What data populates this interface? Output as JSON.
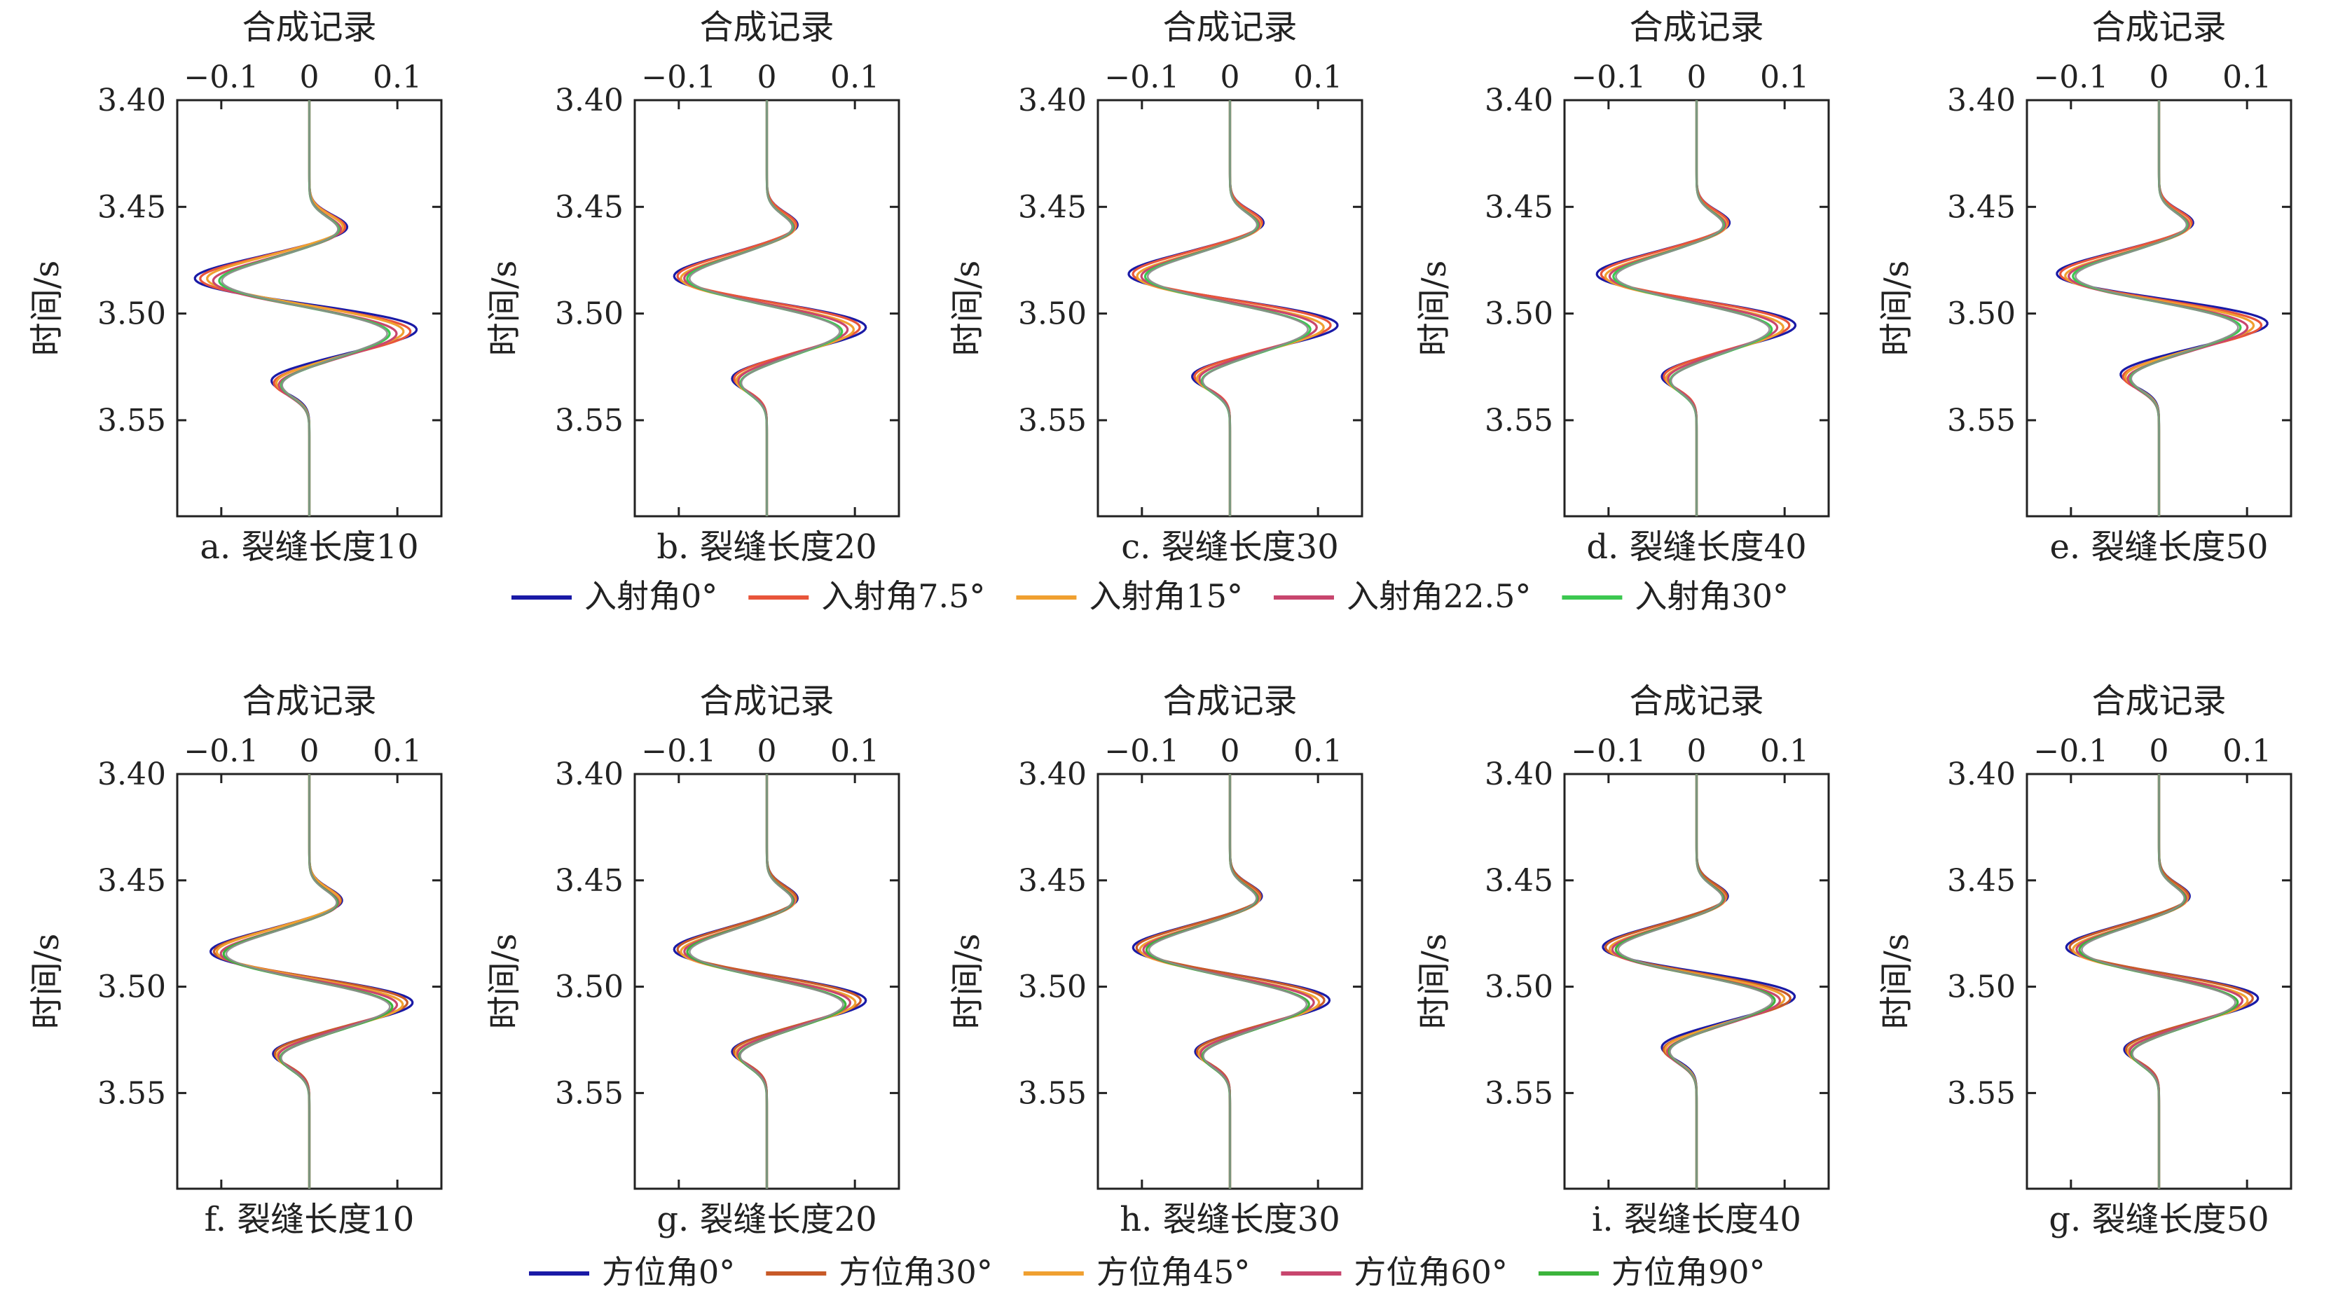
{
  "chart_data": {
    "type": "line",
    "x_axis_label": "合成记录",
    "y_axis_label": "时间/s",
    "x_ticks": [
      -0.1,
      0,
      0.1
    ],
    "x_tick_labels": [
      "−0.1",
      "0",
      "0.1"
    ],
    "xlim": [
      -0.15,
      0.15
    ],
    "y_ticks": [
      3.4,
      3.45,
      3.5,
      3.55
    ],
    "y_tick_labels": [
      "3.40",
      "3.45",
      "3.50",
      "3.55"
    ],
    "ylim": [
      3.4,
      3.595
    ],
    "y_inverted": true,
    "x_axis_position": "top",
    "grid": false,
    "rows": [
      {
        "legend": {
          "placement": "below",
          "entries": [
            {
              "label": "入射角0°",
              "color": "#1a1aa6"
            },
            {
              "label": "入射角7.5°",
              "color": "#e8553a"
            },
            {
              "label": "入射角15°",
              "color": "#f0a030"
            },
            {
              "label": "入射角22.5°",
              "color": "#c8466e"
            },
            {
              "label": "入射角30°",
              "color": "#3cc850"
            }
          ]
        },
        "panels": [
          {
            "caption": "a. 裂缝长度10",
            "series": [
              {
                "peak_time": 3.507,
                "peak_amp": 0.125,
                "trough_time": 3.484,
                "trough_amp": -0.133
              },
              {
                "peak_time": 3.508,
                "peak_amp": 0.117,
                "trough_time": 3.484,
                "trough_amp": -0.126
              },
              {
                "peak_time": 3.508,
                "peak_amp": 0.109,
                "trough_time": 3.484,
                "trough_amp": -0.118
              },
              {
                "peak_time": 3.509,
                "peak_amp": 0.101,
                "trough_time": 3.485,
                "trough_amp": -0.111
              },
              {
                "peak_time": 3.509,
                "peak_amp": 0.093,
                "trough_time": 3.485,
                "trough_amp": -0.104
              }
            ]
          },
          {
            "caption": "b. 裂缝长度20",
            "series": [
              {
                "peak_time": 3.506,
                "peak_amp": 0.115,
                "trough_time": 3.483,
                "trough_amp": -0.108
              },
              {
                "peak_time": 3.506,
                "peak_amp": 0.108,
                "trough_time": 3.483,
                "trough_amp": -0.104
              },
              {
                "peak_time": 3.507,
                "peak_amp": 0.101,
                "trough_time": 3.484,
                "trough_amp": -0.1
              },
              {
                "peak_time": 3.507,
                "peak_amp": 0.094,
                "trough_time": 3.484,
                "trough_amp": -0.096
              },
              {
                "peak_time": 3.508,
                "peak_amp": 0.087,
                "trough_time": 3.484,
                "trough_amp": -0.092
              }
            ]
          },
          {
            "caption": "c. 裂缝长度30",
            "series": [
              {
                "peak_time": 3.505,
                "peak_amp": 0.125,
                "trough_time": 3.482,
                "trough_amp": -0.118
              },
              {
                "peak_time": 3.505,
                "peak_amp": 0.117,
                "trough_time": 3.482,
                "trough_amp": -0.113
              },
              {
                "peak_time": 3.506,
                "peak_amp": 0.109,
                "trough_time": 3.483,
                "trough_amp": -0.108
              },
              {
                "peak_time": 3.506,
                "peak_amp": 0.101,
                "trough_time": 3.483,
                "trough_amp": -0.103
              },
              {
                "peak_time": 3.507,
                "peak_amp": 0.093,
                "trough_time": 3.483,
                "trough_amp": -0.098
              }
            ]
          },
          {
            "caption": "d. 裂缝长度40",
            "series": [
              {
                "peak_time": 3.505,
                "peak_amp": 0.115,
                "trough_time": 3.482,
                "trough_amp": -0.116
              },
              {
                "peak_time": 3.505,
                "peak_amp": 0.108,
                "trough_time": 3.482,
                "trough_amp": -0.111
              },
              {
                "peak_time": 3.506,
                "peak_amp": 0.101,
                "trough_time": 3.483,
                "trough_amp": -0.106
              },
              {
                "peak_time": 3.506,
                "peak_amp": 0.094,
                "trough_time": 3.483,
                "trough_amp": -0.101
              },
              {
                "peak_time": 3.507,
                "peak_amp": 0.087,
                "trough_time": 3.483,
                "trough_amp": -0.096
              }
            ]
          },
          {
            "caption": "e. 裂缝长度50",
            "series": [
              {
                "peak_time": 3.504,
                "peak_amp": 0.127,
                "trough_time": 3.482,
                "trough_amp": -0.12
              },
              {
                "peak_time": 3.505,
                "peak_amp": 0.119,
                "trough_time": 3.482,
                "trough_amp": -0.115
              },
              {
                "peak_time": 3.505,
                "peak_amp": 0.111,
                "trough_time": 3.483,
                "trough_amp": -0.11
              },
              {
                "peak_time": 3.506,
                "peak_amp": 0.103,
                "trough_time": 3.483,
                "trough_amp": -0.105
              },
              {
                "peak_time": 3.506,
                "peak_amp": 0.095,
                "trough_time": 3.483,
                "trough_amp": -0.1
              }
            ]
          }
        ]
      },
      {
        "legend": {
          "placement": "below",
          "entries": [
            {
              "label": "方位角0°",
              "color": "#1a1aa6"
            },
            {
              "label": "方位角30°",
              "color": "#c85a28"
            },
            {
              "label": "方位角45°",
              "color": "#f0a030"
            },
            {
              "label": "方位角60°",
              "color": "#c8466e"
            },
            {
              "label": "方位角90°",
              "color": "#3cb43c"
            }
          ]
        },
        "panels": [
          {
            "caption": "f. 裂缝长度10",
            "series": [
              {
                "peak_time": 3.507,
                "peak_amp": 0.12,
                "trough_time": 3.484,
                "trough_amp": -0.115
              },
              {
                "peak_time": 3.507,
                "peak_amp": 0.114,
                "trough_time": 3.484,
                "trough_amp": -0.111
              },
              {
                "peak_time": 3.508,
                "peak_amp": 0.108,
                "trough_time": 3.484,
                "trough_amp": -0.107
              },
              {
                "peak_time": 3.508,
                "peak_amp": 0.102,
                "trough_time": 3.485,
                "trough_amp": -0.103
              },
              {
                "peak_time": 3.509,
                "peak_amp": 0.096,
                "trough_time": 3.485,
                "trough_amp": -0.099
              }
            ]
          },
          {
            "caption": "g. 裂缝长度20",
            "series": [
              {
                "peak_time": 3.506,
                "peak_amp": 0.115,
                "trough_time": 3.483,
                "trough_amp": -0.108
              },
              {
                "peak_time": 3.506,
                "peak_amp": 0.109,
                "trough_time": 3.483,
                "trough_amp": -0.104
              },
              {
                "peak_time": 3.507,
                "peak_amp": 0.103,
                "trough_time": 3.484,
                "trough_amp": -0.1
              },
              {
                "peak_time": 3.507,
                "peak_amp": 0.097,
                "trough_time": 3.484,
                "trough_amp": -0.096
              },
              {
                "peak_time": 3.508,
                "peak_amp": 0.091,
                "trough_time": 3.484,
                "trough_amp": -0.092
              }
            ]
          },
          {
            "caption": "h. 裂缝长度30",
            "series": [
              {
                "peak_time": 3.506,
                "peak_amp": 0.115,
                "trough_time": 3.482,
                "trough_amp": -0.112
              },
              {
                "peak_time": 3.506,
                "peak_amp": 0.109,
                "trough_time": 3.482,
                "trough_amp": -0.108
              },
              {
                "peak_time": 3.507,
                "peak_amp": 0.103,
                "trough_time": 3.483,
                "trough_amp": -0.104
              },
              {
                "peak_time": 3.507,
                "peak_amp": 0.097,
                "trough_time": 3.483,
                "trough_amp": -0.1
              },
              {
                "peak_time": 3.508,
                "peak_amp": 0.091,
                "trough_time": 3.483,
                "trough_amp": -0.096
              }
            ]
          },
          {
            "caption": "i. 裂缝长度40",
            "series": [
              {
                "peak_time": 3.504,
                "peak_amp": 0.115,
                "trough_time": 3.482,
                "trough_amp": -0.11
              },
              {
                "peak_time": 3.505,
                "peak_amp": 0.109,
                "trough_time": 3.482,
                "trough_amp": -0.106
              },
              {
                "peak_time": 3.505,
                "peak_amp": 0.103,
                "trough_time": 3.483,
                "trough_amp": -0.102
              },
              {
                "peak_time": 3.506,
                "peak_amp": 0.097,
                "trough_time": 3.483,
                "trough_amp": -0.098
              },
              {
                "peak_time": 3.506,
                "peak_amp": 0.091,
                "trough_time": 3.483,
                "trough_amp": -0.094
              }
            ]
          },
          {
            "caption": "g. 裂缝长度50",
            "series": [
              {
                "peak_time": 3.505,
                "peak_amp": 0.115,
                "trough_time": 3.482,
                "trough_amp": -0.108
              },
              {
                "peak_time": 3.505,
                "peak_amp": 0.109,
                "trough_time": 3.482,
                "trough_amp": -0.104
              },
              {
                "peak_time": 3.506,
                "peak_amp": 0.103,
                "trough_time": 3.483,
                "trough_amp": -0.1
              },
              {
                "peak_time": 3.506,
                "peak_amp": 0.097,
                "trough_time": 3.483,
                "trough_amp": -0.096
              },
              {
                "peak_time": 3.507,
                "peak_amp": 0.091,
                "trough_time": 3.483,
                "trough_amp": -0.092
              }
            ]
          }
        ]
      }
    ]
  }
}
